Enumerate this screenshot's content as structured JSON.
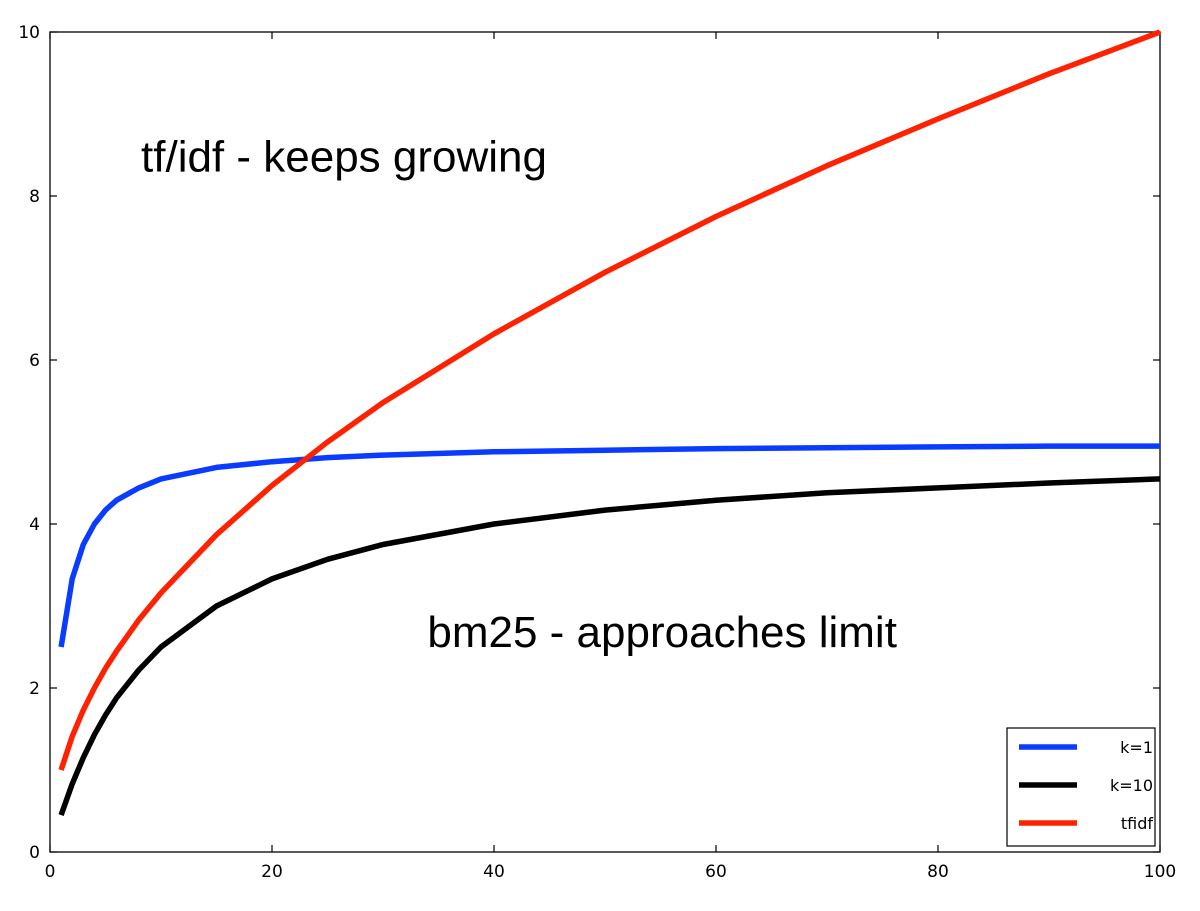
{
  "chart_data": {
    "type": "line",
    "title": "",
    "xlabel": "",
    "ylabel": "",
    "xlim": [
      0,
      100
    ],
    "ylim": [
      0,
      10
    ],
    "xticks": [
      0,
      20,
      40,
      60,
      80,
      100
    ],
    "yticks": [
      0,
      2,
      4,
      6,
      8,
      10
    ],
    "xtick_labels": [
      "0",
      "20",
      "40",
      "60",
      "80",
      "100"
    ],
    "ytick_labels": [
      "0",
      "2",
      "4",
      "6",
      "8",
      "10"
    ],
    "grid": false,
    "legend_position": "bottom-right",
    "series": [
      {
        "name": "k=1",
        "color": "#0a3cff",
        "x": [
          1,
          2,
          3,
          4,
          5,
          6,
          8,
          10,
          15,
          20,
          25,
          30,
          40,
          50,
          60,
          70,
          80,
          90,
          100
        ],
        "y": [
          2.5,
          3.33,
          3.75,
          4.0,
          4.17,
          4.29,
          4.44,
          4.55,
          4.69,
          4.76,
          4.81,
          4.84,
          4.88,
          4.9,
          4.92,
          4.93,
          4.94,
          4.95,
          4.95
        ]
      },
      {
        "name": "k=10",
        "color": "#000000",
        "x": [
          1,
          2,
          3,
          4,
          5,
          6,
          8,
          10,
          15,
          20,
          25,
          30,
          40,
          50,
          60,
          70,
          80,
          90,
          100
        ],
        "y": [
          0.45,
          0.83,
          1.15,
          1.43,
          1.67,
          1.88,
          2.22,
          2.5,
          3.0,
          3.33,
          3.57,
          3.75,
          4.0,
          4.17,
          4.29,
          4.38,
          4.44,
          4.5,
          4.55
        ]
      },
      {
        "name": "tfidf",
        "color": "#ff2200",
        "x": [
          1,
          2,
          3,
          4,
          5,
          6,
          8,
          10,
          15,
          20,
          25,
          30,
          40,
          50,
          60,
          70,
          80,
          90,
          100
        ],
        "y": [
          1.0,
          1.41,
          1.73,
          2.0,
          2.24,
          2.45,
          2.83,
          3.16,
          3.87,
          4.47,
          5.0,
          5.48,
          6.32,
          7.07,
          7.75,
          8.37,
          8.94,
          9.49,
          10.0
        ]
      }
    ],
    "annotations": [
      {
        "text": "tf/idf - keeps growing",
        "x": 8.2,
        "y": 8.3
      },
      {
        "text": "bm25 - approaches limit",
        "x": 34,
        "y": 2.5
      }
    ]
  }
}
